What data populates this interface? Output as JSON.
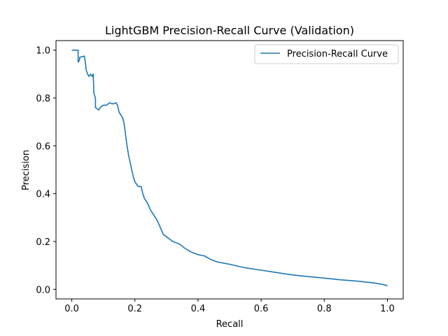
{
  "chart_data": {
    "type": "line",
    "title": "LightGBM Precision-Recall Curve (Validation)",
    "xlabel": "Recall",
    "ylabel": "Precision",
    "xlim": [
      -0.05,
      1.05
    ],
    "ylim": [
      -0.04,
      1.04
    ],
    "xticks": [
      0.0,
      0.2,
      0.4,
      0.6,
      0.8,
      1.0
    ],
    "yticks": [
      0.0,
      0.2,
      0.4,
      0.6,
      0.8,
      1.0
    ],
    "xtick_labels": [
      "0.0",
      "0.2",
      "0.4",
      "0.6",
      "0.8",
      "1.0"
    ],
    "ytick_labels": [
      "0.0",
      "0.2",
      "0.4",
      "0.6",
      "0.8",
      "1.0"
    ],
    "grid": false,
    "legend_position": "top-right",
    "series": [
      {
        "name": "Precision-Recall Curve",
        "color": "#1f77b4",
        "x": [
          0.0,
          0.02,
          0.02,
          0.025,
          0.025,
          0.04,
          0.045,
          0.045,
          0.05,
          0.055,
          0.06,
          0.065,
          0.068,
          0.07,
          0.075,
          0.075,
          0.085,
          0.09,
          0.1,
          0.11,
          0.12,
          0.13,
          0.14,
          0.145,
          0.15,
          0.16,
          0.165,
          0.17,
          0.175,
          0.18,
          0.185,
          0.19,
          0.195,
          0.2,
          0.205,
          0.21,
          0.22,
          0.225,
          0.23,
          0.24,
          0.25,
          0.26,
          0.27,
          0.28,
          0.29,
          0.3,
          0.32,
          0.34,
          0.36,
          0.38,
          0.4,
          0.42,
          0.44,
          0.46,
          0.48,
          0.5,
          0.55,
          0.6,
          0.65,
          0.7,
          0.75,
          0.8,
          0.85,
          0.9,
          0.95,
          0.98,
          1.0
        ],
        "y": [
          1.0,
          1.0,
          0.95,
          0.96,
          0.97,
          0.975,
          0.93,
          0.92,
          0.9,
          0.89,
          0.9,
          0.89,
          0.9,
          0.82,
          0.8,
          0.76,
          0.75,
          0.76,
          0.77,
          0.77,
          0.78,
          0.775,
          0.78,
          0.77,
          0.74,
          0.72,
          0.7,
          0.65,
          0.6,
          0.56,
          0.53,
          0.5,
          0.47,
          0.45,
          0.44,
          0.43,
          0.43,
          0.4,
          0.38,
          0.36,
          0.33,
          0.31,
          0.29,
          0.26,
          0.23,
          0.22,
          0.2,
          0.19,
          0.17,
          0.155,
          0.145,
          0.14,
          0.125,
          0.115,
          0.11,
          0.105,
          0.09,
          0.08,
          0.07,
          0.06,
          0.053,
          0.047,
          0.04,
          0.035,
          0.028,
          0.022,
          0.015
        ]
      }
    ]
  }
}
